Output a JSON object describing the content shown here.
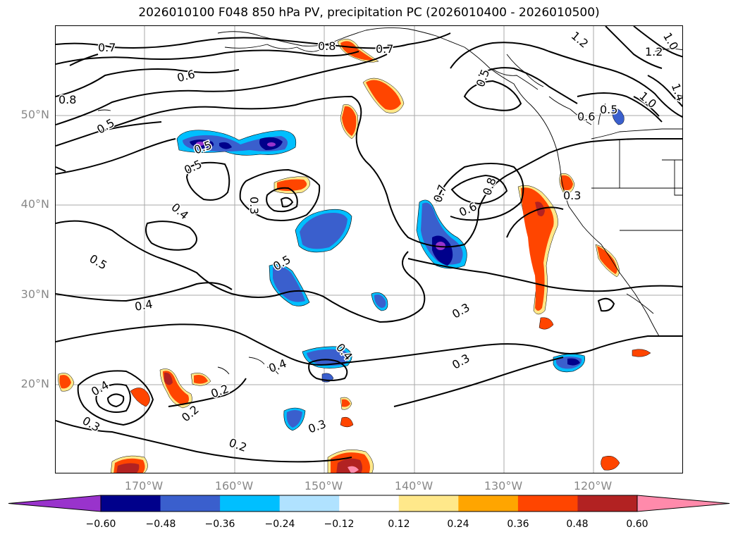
{
  "title": "2026010100 F048 850 hPa PV, precipitation PC (2026010400 - 2026010500)",
  "lat_labels": [
    "50°N",
    "40°N",
    "30°N",
    "20°N"
  ],
  "lon_labels": [
    "170°W",
    "160°W",
    "150°W",
    "140°W",
    "130°W",
    "120°W"
  ],
  "colorbar": {
    "colors": [
      "#9933cc",
      "#00008b",
      "#3a5fcd",
      "#00bfff",
      "#b0e2ff",
      "#ffffff",
      "#ffe88a",
      "#ffa500",
      "#ff4500",
      "#b22222",
      "#ff8aab"
    ],
    "ticks": [
      "−0.60",
      "−0.48",
      "−0.36",
      "−0.24",
      "−0.12",
      "0.12",
      "0.24",
      "0.36",
      "0.48",
      "0.60"
    ]
  },
  "contour_labels": [
    "0.7",
    "0.8",
    "0.7",
    "1.2",
    "1.2",
    "1.0",
    "1.4",
    "0.6",
    "0.8",
    "0.5",
    "1.0",
    "0.5",
    "0.6",
    "0.5",
    "0.4",
    "0.3",
    "0.5",
    "0.5",
    "0.7",
    "0.8",
    "0.6",
    "0.3",
    "0.4",
    "0.3",
    "0.4",
    "0.4",
    "0.4",
    "0.2",
    "0.2",
    "0.3",
    "0.3",
    "0.2",
    "0.5",
    "0.5",
    "0.3"
  ]
}
